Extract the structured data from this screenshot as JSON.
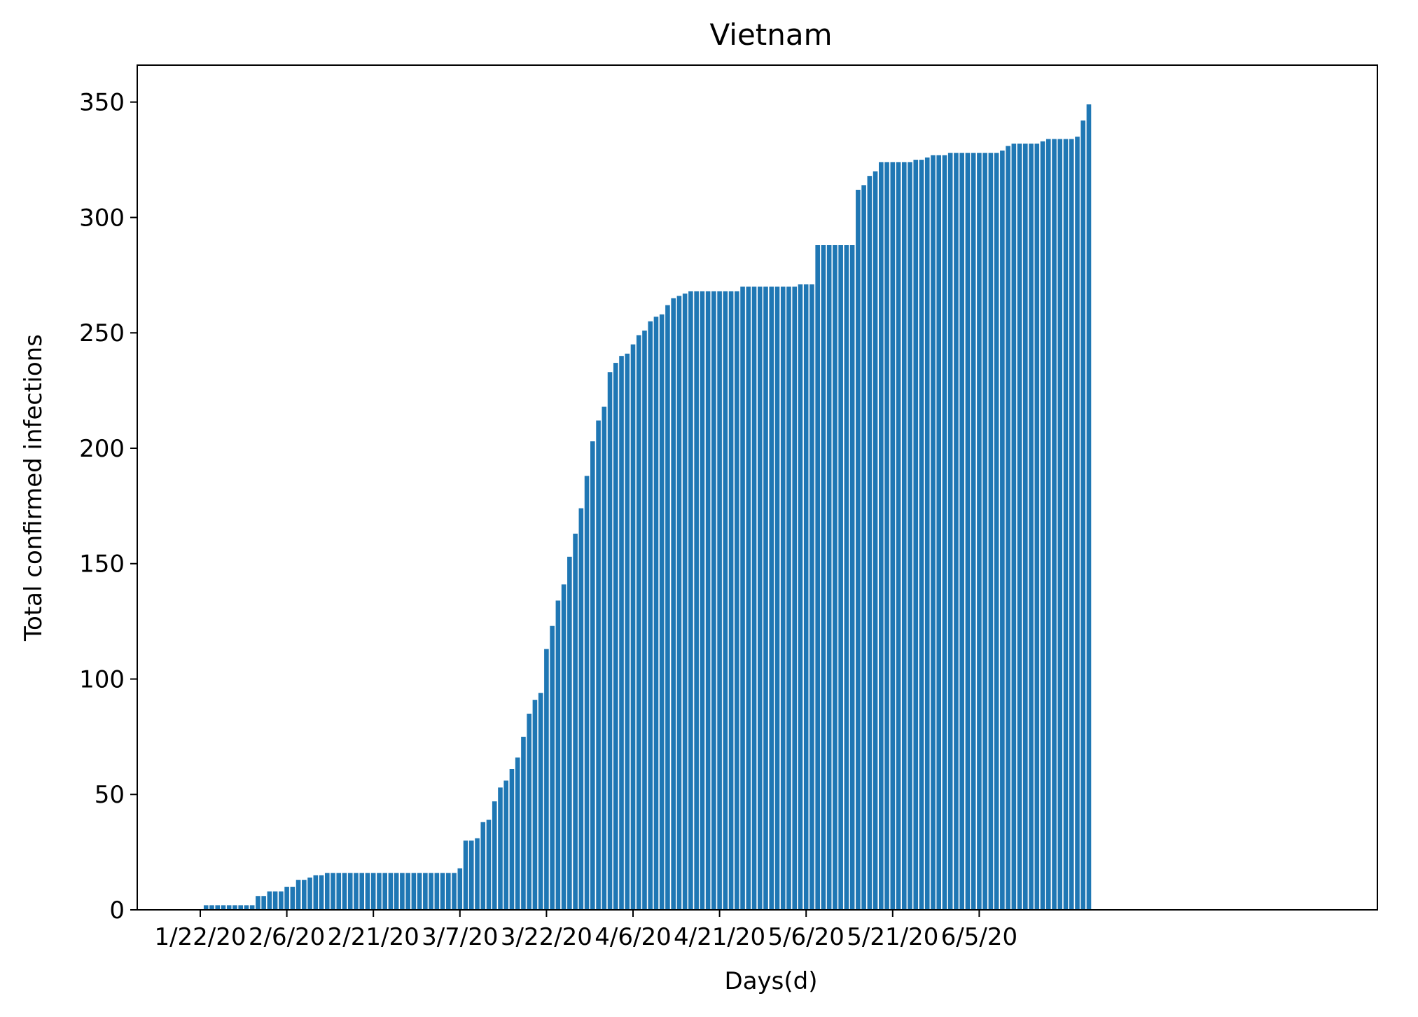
{
  "chart_data": {
    "type": "bar",
    "title": "Vietnam",
    "xlabel": "Days(d)",
    "ylabel": "Total confirmed infections",
    "ylim": [
      0,
      366
    ],
    "yticks": [
      0,
      50,
      100,
      150,
      200,
      250,
      300,
      350
    ],
    "xtick_labels": [
      "1/22/20",
      "2/6/20",
      "2/21/20",
      "3/7/20",
      "3/22/20",
      "4/6/20",
      "4/21/20",
      "5/6/20",
      "5/21/20",
      "6/5/20"
    ],
    "x_start": "1/22/20",
    "x_end": "6/19/20",
    "bar_color": "#1f77b4",
    "grid": false,
    "values": [
      0,
      2,
      2,
      2,
      2,
      2,
      2,
      2,
      2,
      2,
      6,
      6,
      8,
      8,
      8,
      10,
      10,
      13,
      13,
      14,
      15,
      15,
      16,
      16,
      16,
      16,
      16,
      16,
      16,
      16,
      16,
      16,
      16,
      16,
      16,
      16,
      16,
      16,
      16,
      16,
      16,
      16,
      16,
      16,
      16,
      18,
      30,
      30,
      31,
      38,
      39,
      47,
      53,
      56,
      61,
      66,
      75,
      85,
      91,
      94,
      113,
      123,
      134,
      141,
      153,
      163,
      174,
      188,
      203,
      212,
      218,
      233,
      237,
      240,
      241,
      245,
      249,
      251,
      255,
      257,
      258,
      262,
      265,
      266,
      267,
      268,
      268,
      268,
      268,
      268,
      268,
      268,
      268,
      268,
      270,
      270,
      270,
      270,
      270,
      270,
      270,
      270,
      270,
      270,
      271,
      271,
      271,
      288,
      288,
      288,
      288,
      288,
      288,
      288,
      312,
      314,
      318,
      320,
      324,
      324,
      324,
      324,
      324,
      324,
      325,
      325,
      326,
      327,
      327,
      327,
      328,
      328,
      328,
      328,
      328,
      328,
      328,
      328,
      328,
      329,
      331,
      332,
      332,
      332,
      332,
      332,
      333,
      334,
      334,
      334,
      334,
      334,
      335,
      342,
      349
    ]
  }
}
